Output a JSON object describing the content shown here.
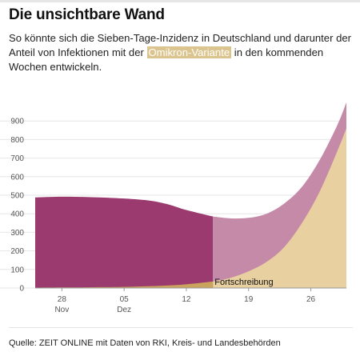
{
  "header": {
    "title": "Die unsichtbare Wand",
    "subtitle_before": "So könnte sich die Sieben-Tage-Inzidenz in Deutschland und darunter der Anteil von Infektionen mit der ",
    "subtitle_highlight": "Omikron-Variante",
    "subtitle_after": " in den kommenden Wochen entwickeln."
  },
  "footer": {
    "source": "Quelle: ZEIT ONLINE mit Daten von RKI, Kreis- und Landesbehörden"
  },
  "colors": {
    "total_observed": "#9b3a6e",
    "total_projected": "#c68aa9",
    "omicron_observed": "#caa45c",
    "omicron_projected": "#e8d0a0",
    "grid": "#e6e6e6"
  },
  "chart_data": {
    "type": "area",
    "title": "",
    "xlabel": "",
    "ylabel": "",
    "x": [
      "2021-11-25",
      "2021-11-28",
      "2021-12-01",
      "2021-12-05",
      "2021-12-08",
      "2021-12-10",
      "2021-12-12",
      "2021-12-15",
      "2021-12-17",
      "2021-12-19",
      "2021-12-21",
      "2021-12-23",
      "2021-12-25",
      "2021-12-27",
      "2021-12-29",
      "2021-12-30"
    ],
    "series": [
      {
        "name": "",
        "values": [
          488,
          492,
          490,
          482,
          470,
          450,
          420,
          385,
          375,
          378,
          400,
          455,
          545,
          690,
          880,
          1000
        ]
      },
      {
        "name": "",
        "values": [
          2,
          3,
          4,
          6,
          10,
          14,
          20,
          35,
          55,
          90,
          140,
          220,
          350,
          520,
          740,
          860
        ]
      }
    ],
    "projection_start": "2021-12-15",
    "annotation": "Fortschreibung",
    "ylim": [
      0,
      1000
    ],
    "yticks": [
      0,
      100,
      200,
      300,
      400,
      500,
      600,
      700,
      800,
      900
    ],
    "xticks": [
      {
        "date": "2021-11-28",
        "label": "28",
        "sublabel": "Nov"
      },
      {
        "date": "2021-12-05",
        "label": "05",
        "sublabel": "Dez"
      },
      {
        "date": "2021-12-12",
        "label": "12",
        "sublabel": ""
      },
      {
        "date": "2021-12-19",
        "label": "19",
        "sublabel": ""
      },
      {
        "date": "2021-12-26",
        "label": "26",
        "sublabel": ""
      }
    ],
    "grid": true,
    "legend": "none"
  }
}
